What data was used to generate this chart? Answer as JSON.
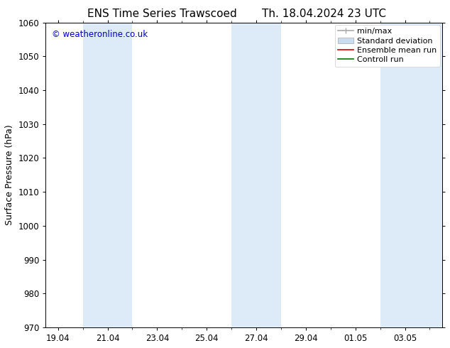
{
  "title_left": "ENS Time Series Trawscoed",
  "title_right": "Th. 18.04.2024 23 UTC",
  "ylabel": "Surface Pressure (hPa)",
  "watermark": "© weatheronline.co.uk",
  "watermark_color": "#0000cc",
  "ylim": [
    970,
    1060
  ],
  "yticks": [
    970,
    980,
    990,
    1000,
    1010,
    1020,
    1030,
    1040,
    1050,
    1060
  ],
  "xtick_labels": [
    "19.04",
    "21.04",
    "23.04",
    "25.04",
    "27.04",
    "29.04",
    "01.05",
    "03.05"
  ],
  "xtick_positions": [
    0,
    2,
    4,
    6,
    8,
    10,
    12,
    14
  ],
  "xlim": [
    -0.5,
    15.5
  ],
  "shaded_bands": [
    {
      "x_start": 1,
      "x_end": 3
    },
    {
      "x_start": 7,
      "x_end": 9
    },
    {
      "x_start": 13,
      "x_end": 15.5
    }
  ],
  "shade_color": "#ddeaf7",
  "bg_color": "#ffffff",
  "title_fontsize": 11,
  "tick_fontsize": 8.5,
  "ylabel_fontsize": 9,
  "legend_fontsize": 8
}
